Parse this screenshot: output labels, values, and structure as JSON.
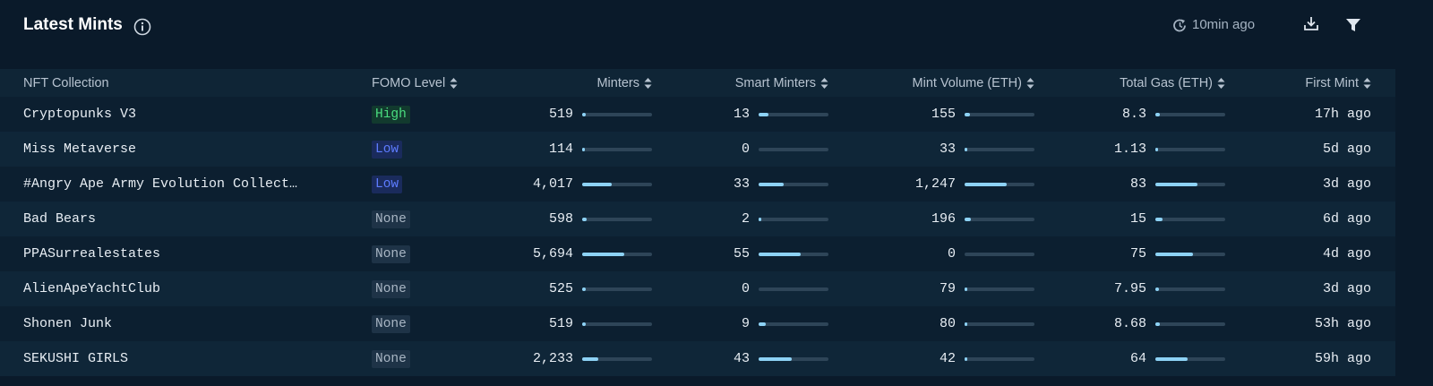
{
  "header": {
    "title": "Latest Mints",
    "updated": "10min ago"
  },
  "table": {
    "columns": [
      "NFT Collection",
      "FOMO Level",
      "Minters",
      "Smart Minters",
      "Mint Volume (ETH)",
      "Total Gas (ETH)",
      "First Mint"
    ],
    "fomo_styles": {
      "High": {
        "color": "#4ade80",
        "background": "#123a2e"
      },
      "Low": {
        "color": "#5d7cff",
        "background": "#1a2b5c"
      },
      "None": {
        "color": "#a9b6c4",
        "background": "#1e3347"
      }
    },
    "row_colors": [
      "#0c1f30",
      "#0f2638"
    ],
    "rows": [
      [
        "Cryptopunks V3",
        "High",
        519,
        13,
        155,
        8.3,
        "17h ago"
      ],
      [
        "Miss Metaverse",
        "Low",
        114,
        0,
        33,
        1.13,
        "5d ago"
      ],
      [
        "#Angry Ape Army Evolution Collect…",
        "Low",
        {
          "value": 4017,
          "label": "4,017"
        },
        33,
        {
          "value": 1247,
          "label": "1,247"
        },
        83,
        "3d ago"
      ],
      [
        "Bad Bears",
        "None",
        598,
        2,
        196,
        15,
        "6d ago"
      ],
      [
        "PPASurrealestates",
        "None",
        {
          "value": 5694,
          "label": "5,694"
        },
        55,
        0,
        75,
        "4d ago"
      ],
      [
        "AlienApeYachtClub",
        "None",
        525,
        0,
        79,
        7.95,
        "3d ago"
      ],
      [
        "Shonen Junk",
        "None",
        519,
        9,
        80,
        8.68,
        "53h ago"
      ],
      [
        "SEKUSHI GIRLS",
        "None",
        {
          "value": 2233,
          "label": "2,233"
        },
        43,
        42,
        64,
        "59h ago"
      ]
    ]
  }
}
